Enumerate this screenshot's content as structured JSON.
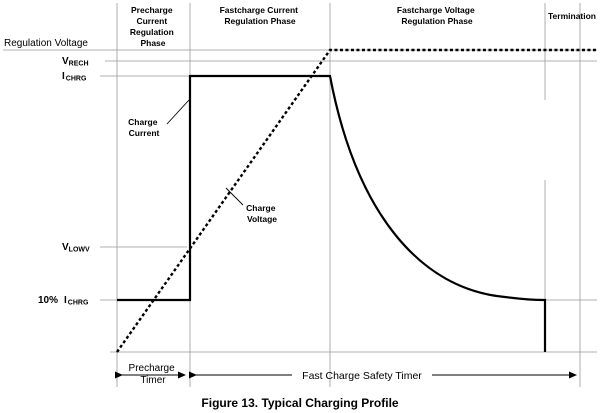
{
  "phases": {
    "precharge": [
      "Precharge",
      "Current",
      "Regulation",
      "Phase"
    ],
    "fastcharge_current": [
      "Fastcharge Current",
      "Regulation Phase"
    ],
    "fastcharge_voltage": [
      "Fastcharge Voltage",
      "Regulation Phase"
    ],
    "termination": "Termination"
  },
  "y_labels": {
    "regulation_voltage": "Regulation Voltage",
    "vrech_main": "V",
    "vrech_sub": "RECH",
    "ichrg_main": "I",
    "ichrg_sub": "CHRG",
    "vlowv_main": "V",
    "vlowv_sub": "LOWV",
    "ten_pct_prefix": "10%",
    "ten_pct_main": "I",
    "ten_pct_sub": "CHRG"
  },
  "annotations": {
    "charge_current": [
      "Charge",
      "Current"
    ],
    "charge_voltage": [
      "Charge",
      "Voltage"
    ]
  },
  "timers": {
    "precharge": [
      "Precharge",
      "Timer"
    ],
    "fast_charge": "Fast Charge Safety Timer"
  },
  "caption": "Figure 13.  Typical Charging Profile"
}
